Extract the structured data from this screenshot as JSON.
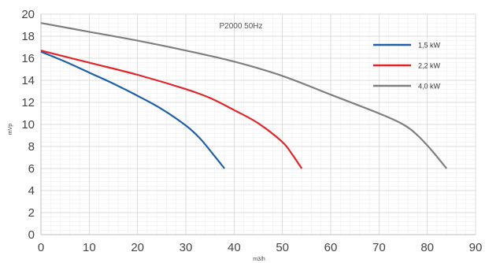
{
  "chart_data": {
    "type": "line",
    "title": "P2000 50Hz",
    "xlabel": "m3/h",
    "ylabel": "mVp",
    "xlim": [
      0,
      90
    ],
    "ylim": [
      0,
      20
    ],
    "xticks": [
      0,
      10,
      20,
      30,
      40,
      50,
      60,
      70,
      80,
      90
    ],
    "yticks": [
      0,
      2,
      4,
      6,
      8,
      10,
      12,
      14,
      16,
      18,
      20
    ],
    "grid": true,
    "legend": "top-right",
    "series": [
      {
        "name": "1,5 kW",
        "color": "#1f5fa8",
        "x": [
          0,
          5,
          10,
          15,
          20,
          25,
          30,
          33,
          36,
          38
        ],
        "y": [
          16.6,
          15.7,
          14.7,
          13.7,
          12.6,
          11.4,
          9.9,
          8.7,
          7.1,
          6.0
        ]
      },
      {
        "name": "2,2 kW",
        "color": "#e0262b",
        "x": [
          0,
          10,
          20,
          30,
          35,
          40,
          45,
          50,
          52,
          54
        ],
        "y": [
          16.7,
          15.6,
          14.5,
          13.2,
          12.4,
          11.3,
          10.1,
          8.4,
          7.3,
          6.0
        ]
      },
      {
        "name": "4,0 kW",
        "color": "#7f7f7f",
        "x": [
          0,
          10,
          20,
          30,
          40,
          50,
          60,
          70,
          75,
          78,
          81,
          84
        ],
        "y": [
          19.2,
          18.4,
          17.6,
          16.7,
          15.7,
          14.4,
          12.7,
          11.0,
          10.0,
          9.0,
          7.6,
          6.0
        ]
      }
    ]
  }
}
